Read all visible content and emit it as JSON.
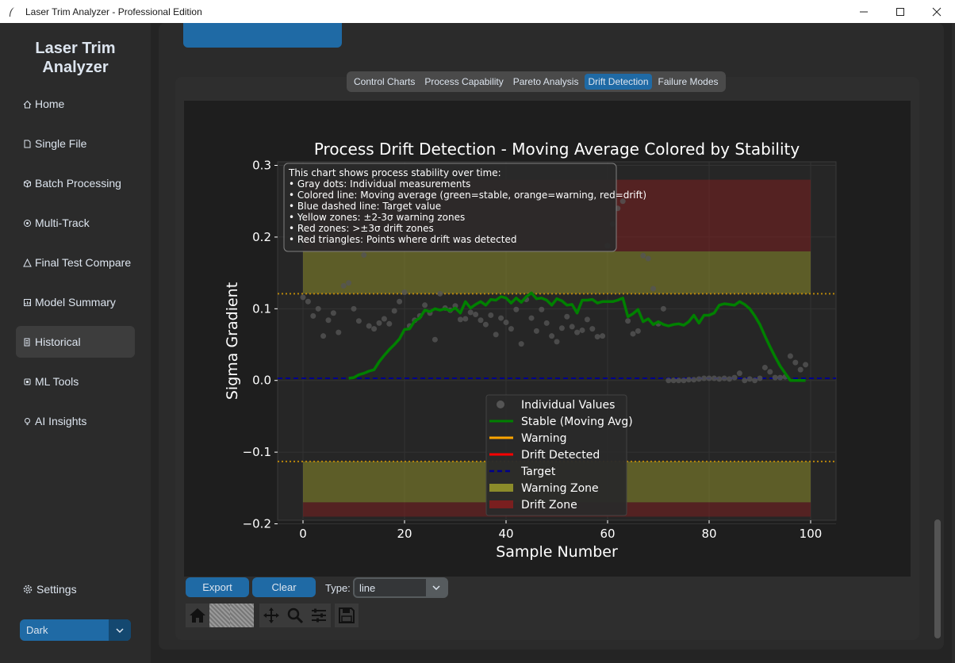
{
  "window": {
    "title": "Laser Trim Analyzer - Professional Edition"
  },
  "sidebar": {
    "brand_line1": "Laser Trim",
    "brand_line2": "Analyzer",
    "items": [
      {
        "label": "Home",
        "icon": "home-icon"
      },
      {
        "label": "Single File",
        "icon": "file-icon"
      },
      {
        "label": "Batch Processing",
        "icon": "box-icon"
      },
      {
        "label": "Multi-Track",
        "icon": "track-icon"
      },
      {
        "label": "Final Test Compare",
        "icon": "compare-icon"
      },
      {
        "label": "Model Summary",
        "icon": "summary-icon"
      },
      {
        "label": "Historical",
        "icon": "history-icon"
      },
      {
        "label": "ML Tools",
        "icon": "ml-icon"
      },
      {
        "label": "AI Insights",
        "icon": "lightbulb-icon"
      }
    ],
    "settings_label": "Settings",
    "appearance_mode": "Dark"
  },
  "tabs": [
    "Control Charts",
    "Process Capability",
    "Pareto Analysis",
    "Drift Detection",
    "Failure Modes"
  ],
  "active_tab": "Drift Detection",
  "controls": {
    "export_label": "Export",
    "clear_label": "Clear",
    "type_label": "Type:",
    "type_value": "line"
  },
  "chart_data": {
    "type": "line",
    "title": "Process Drift Detection - Moving Average Colored by Stability",
    "xlabel": "Sample Number",
    "ylabel": "Sigma Gradient",
    "xlim": [
      -5,
      105
    ],
    "ylim": [
      -0.195,
      0.305
    ],
    "xticks": [
      "0",
      "20",
      "40",
      "60",
      "80",
      "100"
    ],
    "yticks": [
      "0.3",
      "0.2",
      "0.1",
      "0.0",
      "−0.1",
      "−0.2"
    ],
    "ytick_values": [
      0.3,
      0.2,
      0.1,
      0.0,
      -0.1,
      -0.2
    ],
    "xtick_values": [
      0,
      20,
      40,
      60,
      80,
      100
    ],
    "target": 0.003,
    "warning_limit_upper": 0.121,
    "warning_limit_lower": -0.113,
    "zones": {
      "drift_upper": [
        0.18,
        0.28
      ],
      "warning_upper": [
        0.121,
        0.18
      ],
      "warning_lower": [
        -0.17,
        -0.113
      ],
      "drift_lower": [
        -0.19,
        -0.17
      ],
      "x_range": [
        0,
        100
      ]
    },
    "annotation": [
      "This chart shows process stability over time:",
      "• Gray dots: Individual measurements",
      "• Colored line: Moving average (green=stable, orange=warning, red=drift)",
      "• Blue dashed line: Target value",
      "• Yellow zones: ±2-3σ warning zones",
      "• Red zones: >±3σ drift zones",
      "• Red triangles: Points where drift was detected"
    ],
    "legend": [
      "Individual Values",
      "Stable (Moving Avg)",
      "Warning",
      "Drift Detected",
      "Target",
      "Warning Zone",
      "Drift Zone"
    ],
    "legend_position": "lower-center",
    "colors": {
      "points": "#555555",
      "stable": "#008000",
      "warning": "#ffa500",
      "drift": "#ff0000",
      "target": "#00008b",
      "warning_zone": "#8b8b2a",
      "drift_zone": "#7a1f1f",
      "limit_line": "#b8860b"
    },
    "series": [
      {
        "name": "Individual Values",
        "x": [
          0,
          1,
          2,
          3,
          4,
          5,
          6,
          7,
          8,
          9,
          10,
          11,
          12,
          13,
          14,
          15,
          16,
          17,
          18,
          19,
          20,
          21,
          22,
          23,
          24,
          25,
          26,
          27,
          28,
          29,
          30,
          31,
          32,
          33,
          34,
          35,
          36,
          37,
          38,
          39,
          40,
          41,
          42,
          43,
          44,
          45,
          46,
          47,
          48,
          49,
          50,
          51,
          52,
          53,
          54,
          55,
          56,
          57,
          58,
          59,
          60,
          61,
          62,
          63,
          64,
          65,
          66,
          67,
          68,
          69,
          70,
          71,
          72,
          73,
          74,
          75,
          76,
          77,
          78,
          79,
          80,
          81,
          82,
          83,
          84,
          85,
          86,
          87,
          88,
          89,
          90,
          91,
          92,
          93,
          94,
          95,
          96,
          97,
          98,
          99
        ],
        "y": [
          0.116,
          0.11,
          0.09,
          0.1,
          0.062,
          0.084,
          0.094,
          0.067,
          0.132,
          0.136,
          0.1,
          0.083,
          0.175,
          0.076,
          0.072,
          0.08,
          0.086,
          0.079,
          0.097,
          0.11,
          0.123,
          0.076,
          0.084,
          0.09,
          0.105,
          0.094,
          0.057,
          0.121,
          0.101,
          0.098,
          0.104,
          0.085,
          0.086,
          0.095,
          0.092,
          0.084,
          0.078,
          0.091,
          0.064,
          0.087,
          0.081,
          0.072,
          0.099,
          0.051,
          0.113,
          0.087,
          0.069,
          0.099,
          0.08,
          0.062,
          0.054,
          0.073,
          0.089,
          0.075,
          0.067,
          0.07,
          0.085,
          0.072,
          0.061,
          0.062,
          0.188,
          0.218,
          0.24,
          0.25,
          0.083,
          0.065,
          0.069,
          0.174,
          0.17,
          0.128,
          0.079,
          0.1,
          0.0,
          0.0,
          0.0,
          0.0,
          0.001,
          0.001,
          0.002,
          0.003,
          0.003,
          0.003,
          0.002,
          0.003,
          0.002,
          0.004,
          0.01,
          0.0,
          0.002,
          0.0,
          0.003,
          0.018,
          0.012,
          0.004,
          0.004,
          0.005,
          0.034,
          0.025,
          0.015,
          0.022
        ]
      },
      {
        "name": "Stable (Moving Avg)",
        "x": [
          9,
          10,
          11,
          12,
          13,
          14,
          15,
          16,
          17,
          18,
          19,
          20,
          21,
          22,
          23,
          24,
          25,
          26,
          27,
          28,
          29,
          30,
          31,
          32,
          33,
          34,
          35,
          36,
          37,
          38,
          39,
          40,
          41,
          42,
          43,
          44,
          45,
          46,
          47,
          48,
          49,
          50,
          51,
          52,
          53,
          54,
          55,
          56,
          57,
          58,
          59,
          60,
          61,
          62,
          63,
          64,
          65,
          66,
          67,
          68,
          69,
          70,
          71,
          72,
          73,
          74,
          75,
          76,
          77,
          78,
          79,
          80,
          81,
          82,
          83,
          84,
          85,
          86,
          87,
          88,
          89,
          90,
          91,
          92,
          93,
          94,
          95,
          96,
          97,
          98,
          99
        ],
        "y": [
          0.003,
          0.004,
          0.008,
          0.01,
          0.013,
          0.015,
          0.026,
          0.035,
          0.043,
          0.05,
          0.058,
          0.071,
          0.072,
          0.083,
          0.087,
          0.098,
          0.096,
          0.1,
          0.098,
          0.1,
          0.097,
          0.101,
          0.094,
          0.11,
          0.101,
          0.106,
          0.11,
          0.105,
          0.113,
          0.112,
          0.117,
          0.115,
          0.108,
          0.115,
          0.109,
          0.117,
          0.122,
          0.114,
          0.115,
          0.112,
          0.105,
          0.114,
          0.111,
          0.105,
          0.106,
          0.094,
          0.112,
          0.112,
          0.113,
          0.108,
          0.11,
          0.11,
          0.11,
          0.112,
          0.115,
          0.089,
          0.093,
          0.099,
          0.082,
          0.086,
          0.078,
          0.082,
          0.078,
          0.076,
          0.078,
          0.079,
          0.077,
          0.082,
          0.091,
          0.08,
          0.091,
          0.091,
          0.094,
          0.105,
          0.107,
          0.106,
          0.105,
          0.11,
          0.106,
          0.1,
          0.09,
          0.078,
          0.062,
          0.047,
          0.033,
          0.02,
          0.01,
          0.0,
          0.0,
          0.0,
          0.0
        ]
      }
    ]
  }
}
